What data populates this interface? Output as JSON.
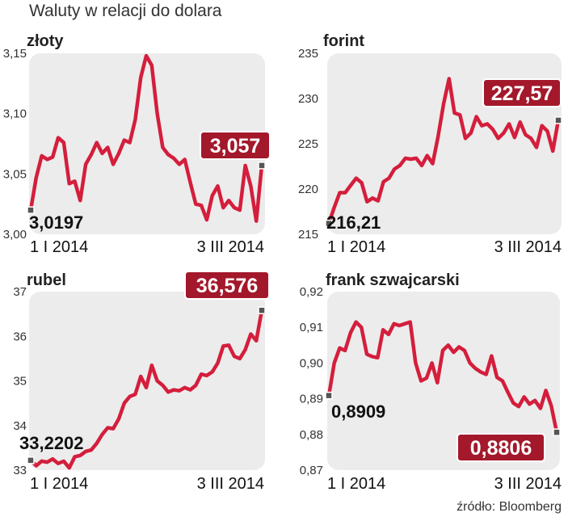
{
  "title": "Waluty w relacji do dolara",
  "source": "źródło: Bloomberg",
  "colors": {
    "line": "#d41e3c",
    "plot_bg": "#ececec",
    "label_bg": "#a3182b",
    "marker": "#555555"
  },
  "chart_data": [
    {
      "type": "line",
      "title": "złoty",
      "x_labels": [
        "1 I 2014",
        "3 III 2014"
      ],
      "yticks": [
        "3,15",
        "3,10",
        "3,05",
        "3,00"
      ],
      "ylim": [
        3.0,
        3.15
      ],
      "start_label": "3,0197",
      "end_label": "3,057",
      "values": [
        3.02,
        3.047,
        3.065,
        3.062,
        3.064,
        3.08,
        3.076,
        3.042,
        3.044,
        3.028,
        3.058,
        3.066,
        3.076,
        3.067,
        3.072,
        3.058,
        3.067,
        3.078,
        3.076,
        3.095,
        3.13,
        3.148,
        3.14,
        3.1,
        3.072,
        3.066,
        3.063,
        3.058,
        3.062,
        3.043,
        3.025,
        3.024,
        3.012,
        3.032,
        3.04,
        3.022,
        3.028,
        3.022,
        3.02,
        3.057,
        3.04,
        3.011,
        3.057
      ]
    },
    {
      "type": "line",
      "title": "forint",
      "x_labels": [
        "1 I 2014",
        "3 III 2014"
      ],
      "yticks": [
        "235",
        "230",
        "225",
        "220",
        "215"
      ],
      "ylim": [
        215,
        235
      ],
      "start_label": "216,21",
      "end_label": "227,57",
      "values": [
        216.2,
        218.0,
        219.6,
        219.6,
        220.4,
        221.2,
        220.7,
        218.6,
        219.0,
        218.7,
        220.8,
        221.2,
        222.2,
        222.6,
        223.4,
        223.3,
        223.4,
        222.6,
        223.7,
        222.8,
        225.8,
        229.4,
        232.2,
        228.4,
        228.2,
        225.6,
        226.2,
        228.0,
        227.0,
        227.2,
        226.6,
        225.6,
        226.2,
        227.2,
        225.7,
        227.4,
        226.0,
        225.6,
        224.6,
        227.0,
        226.4,
        224.2,
        227.6
      ]
    },
    {
      "type": "line",
      "title": "rubel",
      "x_labels": [
        "1 I 2014",
        "3 III 2014"
      ],
      "yticks": [
        "37",
        "36",
        "35",
        "34",
        "33"
      ],
      "ylim": [
        33,
        37
      ],
      "start_label": "33,2202",
      "end_label": "36,576",
      "values": [
        33.22,
        33.1,
        33.2,
        33.18,
        33.25,
        33.15,
        33.2,
        33.05,
        33.3,
        33.33,
        33.42,
        33.45,
        33.6,
        33.8,
        33.95,
        33.93,
        34.15,
        34.5,
        34.65,
        34.7,
        35.1,
        34.85,
        35.35,
        35.0,
        34.9,
        34.75,
        34.8,
        34.78,
        34.85,
        34.8,
        34.9,
        35.15,
        35.12,
        35.2,
        35.4,
        35.78,
        35.8,
        35.55,
        35.5,
        35.7,
        36.05,
        35.9,
        36.58
      ]
    },
    {
      "type": "line",
      "title": "frank szwajcarski",
      "x_labels": [
        "1 I 2014",
        "3 III 2014"
      ],
      "yticks": [
        "0,92",
        "0,91",
        "0,90",
        "0,89",
        "0,88",
        "0,87"
      ],
      "ylim": [
        0.87,
        0.92
      ],
      "start_label": "0,8909",
      "end_label": "0,8806",
      "values": [
        0.8909,
        0.9,
        0.9042,
        0.9035,
        0.9085,
        0.9115,
        0.91,
        0.9025,
        0.9018,
        0.9015,
        0.9093,
        0.908,
        0.911,
        0.9105,
        0.911,
        0.9115,
        0.9,
        0.895,
        0.8958,
        0.9,
        0.8945,
        0.9035,
        0.905,
        0.903,
        0.9045,
        0.9035,
        0.9,
        0.8985,
        0.8975,
        0.8968,
        0.902,
        0.896,
        0.895,
        0.8918,
        0.8888,
        0.8878,
        0.8905,
        0.8885,
        0.8895,
        0.8873,
        0.8923,
        0.888,
        0.8806
      ]
    }
  ]
}
